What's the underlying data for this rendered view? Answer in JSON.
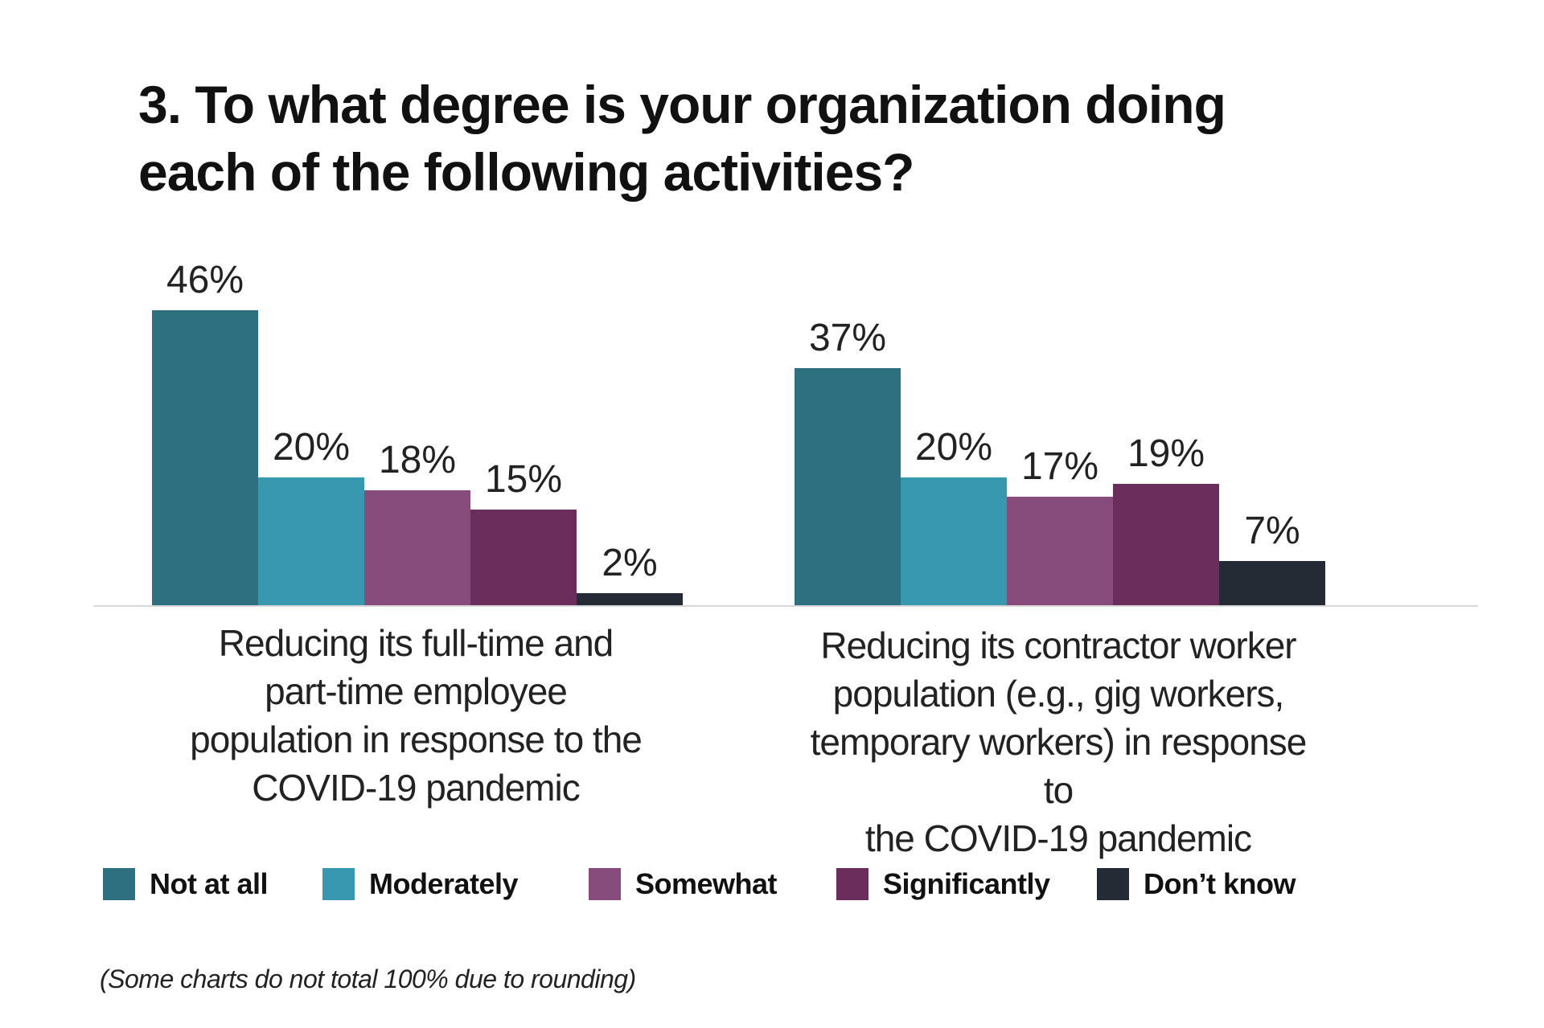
{
  "chart_data": {
    "type": "bar",
    "title": "3. To what degree is your organization doing each of the following activities?",
    "categories": [
      "Reducing its full-time and part-time employee population in response to the COVID-19 pandemic",
      "Reducing its contractor worker population (e.g., gig workers, temporary workers) in response to the COVID-19 pandemic"
    ],
    "category_lines": [
      [
        "Reducing its full-time and",
        "part-time employee",
        "population in response to the",
        "COVID-19 pandemic"
      ],
      [
        "Reducing its contractor worker",
        "population (e.g., gig workers,",
        "temporary workers) in response to",
        "the COVID-19 pandemic"
      ]
    ],
    "series": [
      {
        "name": "Not at all",
        "color": "#2e6f80",
        "values": [
          46,
          37
        ]
      },
      {
        "name": "Moderately",
        "color": "#3898b0",
        "values": [
          20,
          20
        ]
      },
      {
        "name": "Somewhat",
        "color": "#874c7c",
        "values": [
          18,
          17
        ]
      },
      {
        "name": "Significantly",
        "color": "#6a2d5c",
        "values": [
          15,
          19
        ]
      },
      {
        "name": "Don’t know",
        "color": "#242b35",
        "values": [
          2,
          7
        ]
      }
    ],
    "value_suffix": "%",
    "ylim": [
      0,
      50
    ],
    "legend_position": "bottom",
    "grid": false,
    "footnote": "(Some charts do not total 100% due to rounding)"
  }
}
